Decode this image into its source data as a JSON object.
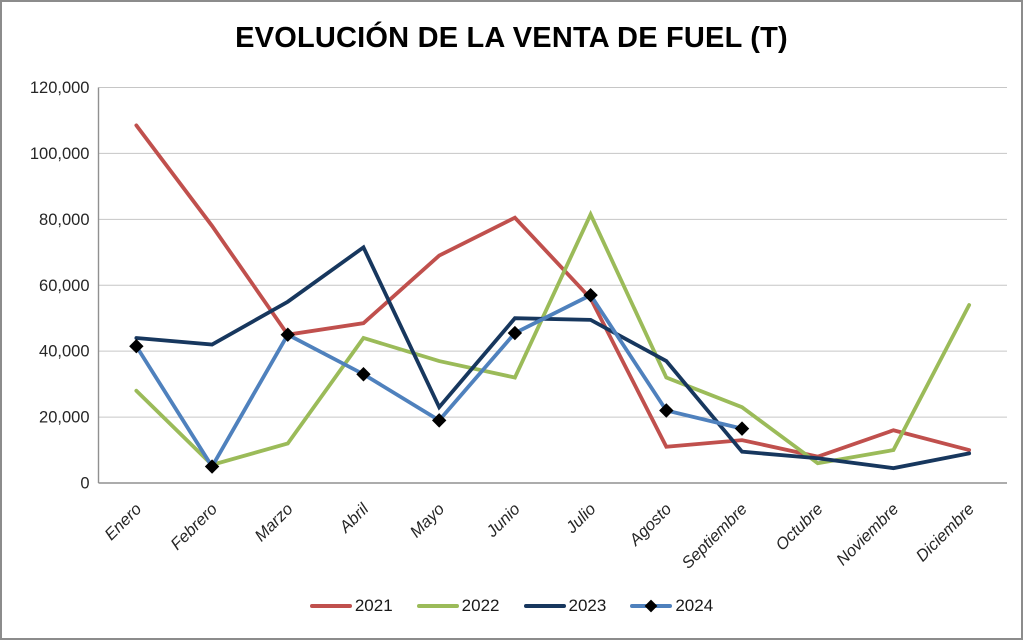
{
  "window": {
    "background": "#ffffff",
    "border_color": "#8c8c8c"
  },
  "chart_data": {
    "type": "line",
    "title": "EVOLUCIÓN DE LA VENTA DE FUEL (T)",
    "categories": [
      "Enero",
      "Febrero",
      "Marzo",
      "Abril",
      "Mayo",
      "Junio",
      "Julio",
      "Agosto",
      "Septiembre",
      "Octubre",
      "Noviembre",
      "Diciembre"
    ],
    "series": [
      {
        "name": "2021",
        "color": "#C0504D",
        "marker": "none",
        "values": [
          108500,
          78000,
          45000,
          48500,
          69000,
          80500,
          56000,
          11000,
          13000,
          8000,
          16000,
          10000
        ]
      },
      {
        "name": "2022",
        "color": "#9BBB59",
        "marker": "none",
        "values": [
          28000,
          5500,
          12000,
          44000,
          37000,
          32000,
          81500,
          32000,
          23000,
          6000,
          10000,
          54000
        ]
      },
      {
        "name": "2023",
        "color": "#17375E",
        "marker": "none",
        "values": [
          44000,
          42000,
          55000,
          71500,
          23000,
          50000,
          49500,
          37000,
          9500,
          7500,
          4500,
          9000
        ]
      },
      {
        "name": "2024",
        "color": "#4F81BD",
        "marker": "diamond",
        "marker_color": "#000000",
        "values": [
          41500,
          5000,
          45000,
          33000,
          19000,
          45500,
          57000,
          22000,
          16500
        ]
      }
    ],
    "ylim": [
      0,
      120000
    ],
    "ytick_interval": 20000,
    "ytick_labels": [
      "0",
      "20,000",
      "40,000",
      "60,000",
      "80,000",
      "100,000",
      "120,000"
    ],
    "xlabel": "",
    "ylabel": "",
    "grid": "horizontal",
    "legend_position": "bottom",
    "gridline_color": "#c6c6c6",
    "axis_color": "#909090",
    "label_color": "#262626"
  }
}
